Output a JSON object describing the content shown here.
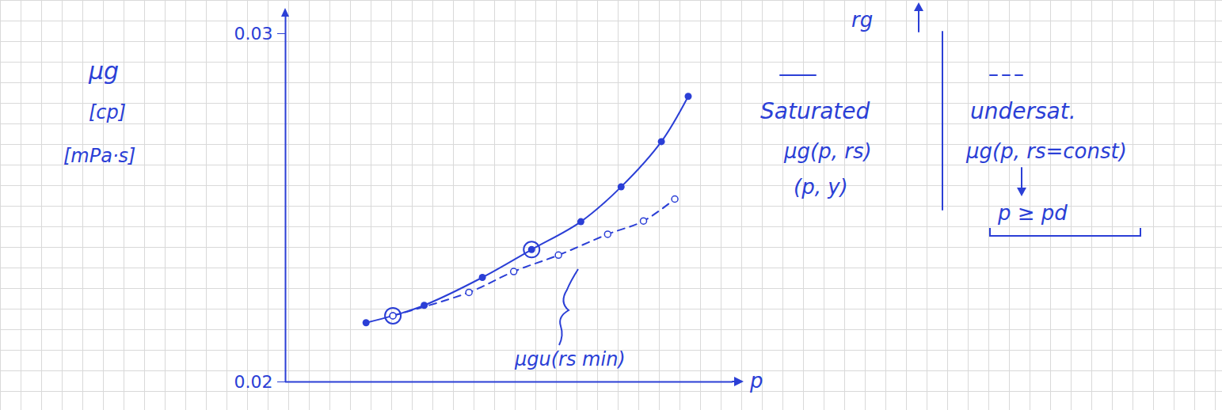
{
  "chart_data": {
    "type": "line",
    "ylabel": [
      "μg",
      "[cp]",
      "[mPa·s]"
    ],
    "xlabel": "p",
    "xlim": [
      0,
      10
    ],
    "xticks": [],
    "ylim": [
      0.02,
      0.0305
    ],
    "yticks": [
      0.02,
      0.03
    ],
    "tick_labels": "y",
    "series": [
      {
        "name": "Saturated",
        "color": "#2b3fd6",
        "line_style": "solid",
        "marker": "dot",
        "x": [
          1.8,
          2.4,
          3.1,
          4.4,
          5.5,
          6.6,
          7.5,
          8.4,
          9.0
        ],
        "values": [
          0.0217,
          0.0219,
          0.0222,
          0.023,
          0.0238,
          0.0246,
          0.0256,
          0.0269,
          0.0282
        ],
        "circled": [
          false,
          true,
          false,
          false,
          true,
          false,
          false,
          false,
          false
        ],
        "label": [
          "μg(p, rs)",
          "(p, y)"
        ]
      },
      {
        "name": "undersat.",
        "color": "#2b3fd6",
        "line_style": "dashed",
        "marker": "circle",
        "x": [
          2.4,
          4.1,
          5.1,
          6.1,
          7.2,
          8.0,
          8.7
        ],
        "values": [
          0.0219,
          0.02257,
          0.02317,
          0.02364,
          0.02424,
          0.02462,
          0.02525
        ],
        "label": [
          "μg(p, rs=const)",
          "p ≥ pd"
        ]
      }
    ],
    "annotations": [
      "μgu(rs min)",
      "rg"
    ]
  }
}
